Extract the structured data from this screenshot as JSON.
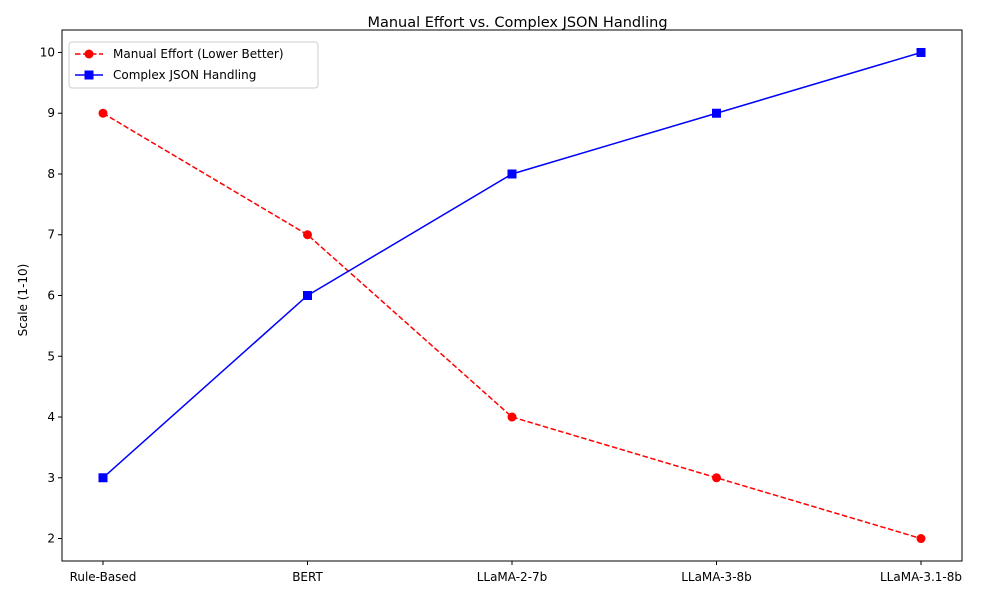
{
  "chart_data": {
    "type": "line",
    "title": "Manual Effort vs. Complex JSON Handling",
    "xlabel": "",
    "ylabel": "Scale (1-10)",
    "categories": [
      "Rule-Based",
      "BERT",
      "LLaMA-2-7b",
      "LLaMA-3-8b",
      "LLaMA-3.1-8b"
    ],
    "ylim": [
      1.63,
      10.37
    ],
    "yticks": [
      2,
      3,
      4,
      5,
      6,
      7,
      8,
      9,
      10
    ],
    "grid": false,
    "legend_position": "top-left",
    "series": [
      {
        "name": "Manual Effort (Lower Better)",
        "values": [
          9,
          7,
          4,
          3,
          2
        ],
        "color": "#ff0000",
        "line_style": "dashed",
        "marker": "circle"
      },
      {
        "name": "Complex JSON Handling",
        "values": [
          3,
          6,
          8,
          9,
          10
        ],
        "color": "#0000ff",
        "line_style": "solid",
        "marker": "square"
      }
    ]
  }
}
